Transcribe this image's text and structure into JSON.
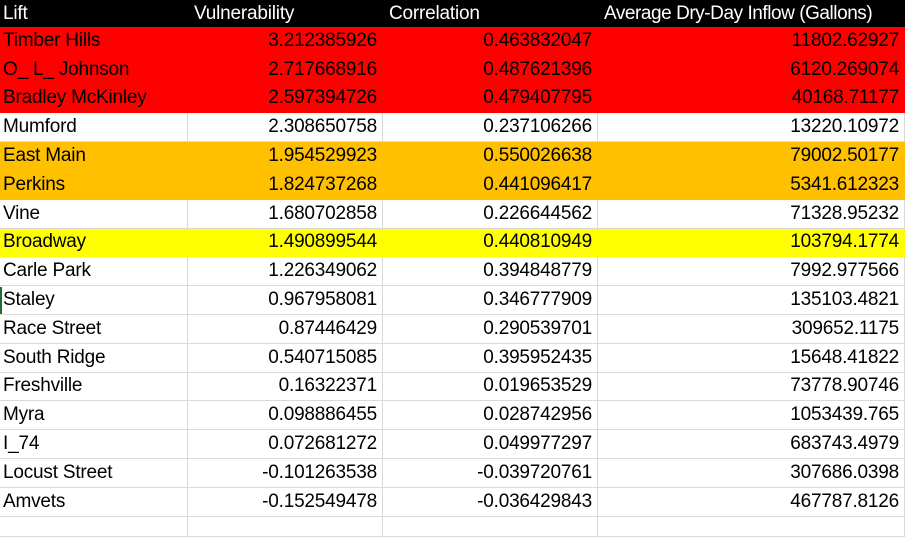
{
  "table": {
    "columns": [
      {
        "label": "Lift"
      },
      {
        "label": "Vulnerability"
      },
      {
        "label": "Correlation"
      },
      {
        "label": "Average Dry-Day Inflow (Gallons)"
      }
    ],
    "rows": [
      {
        "lift": "Timber Hills",
        "vulnerability": "3.212385926",
        "correlation": "0.463832047",
        "inflow": "11802.62927",
        "fill": "red"
      },
      {
        "lift": "O_ L_ Johnson",
        "vulnerability": "2.717668916",
        "correlation": "0.487621396",
        "inflow": "6120.269074",
        "fill": "red"
      },
      {
        "lift": "Bradley McKinley",
        "vulnerability": "2.597394726",
        "correlation": "0.479407795",
        "inflow": "40168.71177",
        "fill": "red"
      },
      {
        "lift": "Mumford",
        "vulnerability": "2.308650758",
        "correlation": "0.237106266",
        "inflow": "13220.10972",
        "fill": "none"
      },
      {
        "lift": "East Main",
        "vulnerability": "1.954529923",
        "correlation": "0.550026638",
        "inflow": "79002.50177",
        "fill": "orange"
      },
      {
        "lift": "Perkins",
        "vulnerability": "1.824737268",
        "correlation": "0.441096417",
        "inflow": "5341.612323",
        "fill": "orange"
      },
      {
        "lift": "Vine",
        "vulnerability": "1.680702858",
        "correlation": "0.226644562",
        "inflow": "71328.95232",
        "fill": "none"
      },
      {
        "lift": "Broadway",
        "vulnerability": "1.490899544",
        "correlation": "0.440810949",
        "inflow": "103794.1774",
        "fill": "yellow"
      },
      {
        "lift": "Carle Park",
        "vulnerability": "1.226349062",
        "correlation": "0.394848779",
        "inflow": "7992.977566",
        "fill": "none"
      },
      {
        "lift": "Staley",
        "vulnerability": "0.967958081",
        "correlation": "0.346777909",
        "inflow": "135103.4821",
        "fill": "none"
      },
      {
        "lift": "Race Street",
        "vulnerability": "0.87446429",
        "correlation": "0.290539701",
        "inflow": "309652.1175",
        "fill": "none"
      },
      {
        "lift": "South Ridge",
        "vulnerability": "0.540715085",
        "correlation": "0.395952435",
        "inflow": "15648.41822",
        "fill": "none"
      },
      {
        "lift": "Freshville",
        "vulnerability": "0.16322371",
        "correlation": "0.019653529",
        "inflow": "73778.90746",
        "fill": "none"
      },
      {
        "lift": "Myra",
        "vulnerability": "0.098886455",
        "correlation": "0.028742956",
        "inflow": "1053439.765",
        "fill": "none"
      },
      {
        "lift": "I_74",
        "vulnerability": "0.072681272",
        "correlation": "0.049977297",
        "inflow": "683743.4979",
        "fill": "none"
      },
      {
        "lift": "Locust Street",
        "vulnerability": "-0.101263538",
        "correlation": "-0.039720761",
        "inflow": "307686.0398",
        "fill": "none"
      },
      {
        "lift": "Amvets",
        "vulnerability": "-0.152549478",
        "correlation": "-0.036429843",
        "inflow": "467787.8126",
        "fill": "none"
      }
    ]
  },
  "colors": {
    "red": "#FF0000",
    "orange": "#FFC000",
    "yellow": "#FFFF00",
    "header_bg": "#000000",
    "header_text": "#FFFFFF",
    "gridline": "#D9D9D9",
    "row_text": "#000000",
    "green_marker": "#1E6B34"
  }
}
